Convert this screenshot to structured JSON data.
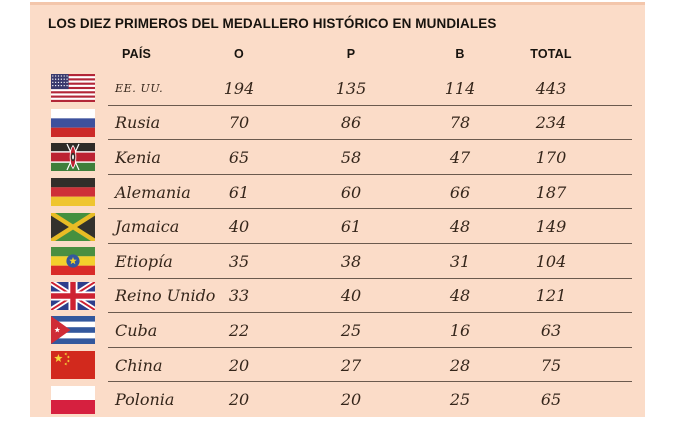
{
  "chart_data": {
    "type": "table",
    "title": "LOS DIEZ PRIMEROS DEL MEDALLERO HISTÓRICO EN MUNDIALES",
    "columns": {
      "country": "PAÍS",
      "gold": "O",
      "silver": "P",
      "bronze": "B",
      "total": "TOTAL"
    },
    "rows": [
      {
        "flag": "usa",
        "country": "EE. UU.",
        "gold": "194",
        "silver": "135",
        "bronze": "114",
        "total": "443",
        "country_style": "small-caps"
      },
      {
        "flag": "russia",
        "country": "Rusia",
        "gold": "70",
        "silver": "86",
        "bronze": "78",
        "total": "234"
      },
      {
        "flag": "kenya",
        "country": "Kenia",
        "gold": "65",
        "silver": "58",
        "bronze": "47",
        "total": "170"
      },
      {
        "flag": "germany",
        "country": "Alemania",
        "gold": "61",
        "silver": "60",
        "bronze": "66",
        "total": "187"
      },
      {
        "flag": "jamaica",
        "country": "Jamaica",
        "gold": "40",
        "silver": "61",
        "bronze": "48",
        "total": "149"
      },
      {
        "flag": "ethiopia",
        "country": "Etiopía",
        "gold": "35",
        "silver": "38",
        "bronze": "31",
        "total": "104"
      },
      {
        "flag": "uk",
        "country": "Reino Unido",
        "gold": "33",
        "silver": "40",
        "bronze": "48",
        "total": "121"
      },
      {
        "flag": "cuba",
        "country": "Cuba",
        "gold": "22",
        "silver": "25",
        "bronze": "16",
        "total": "63"
      },
      {
        "flag": "china",
        "country": "China",
        "gold": "20",
        "silver": "27",
        "bronze": "28",
        "total": "75"
      },
      {
        "flag": "poland",
        "country": "Polonia",
        "gold": "20",
        "silver": "20",
        "bronze": "25",
        "total": "65"
      }
    ]
  },
  "colors": {
    "panel_background": "#fbdcc8",
    "panel_top_edge": "#f3c6ab",
    "divider_line": "#6b5a4e",
    "body_text": "#35261b",
    "heading_text": "#17130e"
  }
}
